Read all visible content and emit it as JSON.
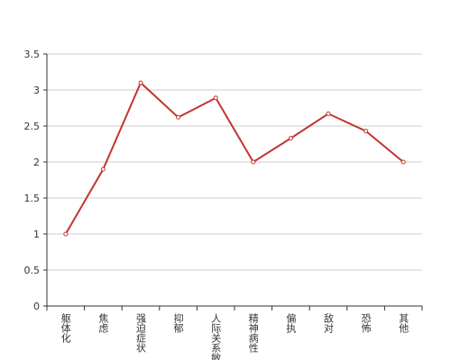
{
  "chart_data": {
    "type": "line",
    "categories": [
      "躯体化",
      "焦虑",
      "强迫症状",
      "抑郁",
      "人际关系敏感",
      "精神病性",
      "偏执",
      "敌对",
      "恐怖",
      "其他"
    ],
    "series": [
      {
        "color": "#c23531",
        "values": [
          1,
          1.9,
          3.1,
          2.62,
          2.89,
          2.0,
          2.33,
          2.67,
          2.43,
          2.0
        ]
      }
    ],
    "ylim": [
      0,
      3.5
    ],
    "yticks": [
      0,
      0.5,
      1,
      1.5,
      2,
      2.5,
      3,
      3.5
    ],
    "grid": true
  }
}
